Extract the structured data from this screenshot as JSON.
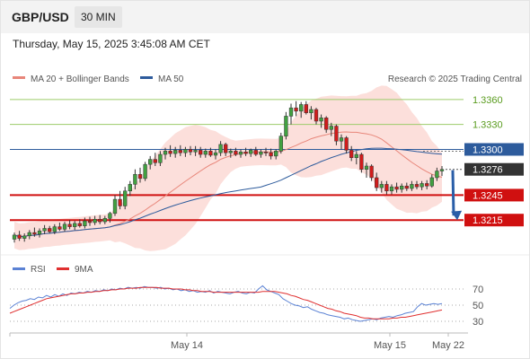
{
  "header": {
    "pair": "GBP/USD",
    "timeframe": "30 MIN"
  },
  "datetime": "Thursday, May 15, 2025 3:45:08 AM CET",
  "legend": {
    "bb": "MA 20 + Bollinger Bands",
    "ma50": "MA 50",
    "credit": "Research © 2025 Trading Central"
  },
  "rsi_legend": {
    "rsi": "RSI",
    "ma": "9MA"
  },
  "colors": {
    "up": "#41a141",
    "down": "#d11c1c",
    "res_line": "#9ccc6a",
    "res_text": "#5a9c1f",
    "support": "#d01010",
    "ma50": "#2d5b9c",
    "ma20": "#e8867a",
    "bb_fill": "#fcd9d5",
    "rsi": "#5b82d4",
    "rsi_ma": "#e03030",
    "arrow": "#2a5ea8",
    "current": "#333333"
  },
  "chart_data": {
    "type": "candlestick",
    "ylim": [
      1.3185,
      1.3375
    ],
    "x_ticks": [
      "May 14",
      "May 15",
      "May 22"
    ],
    "levels": [
      {
        "value": 1.336,
        "label": "1.3360",
        "kind": "resistance"
      },
      {
        "value": 1.333,
        "label": "1.3330",
        "kind": "resistance"
      },
      {
        "value": 1.33,
        "label": "1.3300",
        "kind": "pivot"
      },
      {
        "value": 1.3276,
        "label": "1.3276",
        "kind": "current"
      },
      {
        "value": 1.3245,
        "label": "1.3245",
        "kind": "support"
      },
      {
        "value": 1.3215,
        "label": "1.3215",
        "kind": "support"
      }
    ],
    "forecast": {
      "from": 1.3275,
      "to": 1.3215
    },
    "candles": [
      [
        1.3192,
        1.32,
        1.3188,
        1.3197
      ],
      [
        1.3197,
        1.3202,
        1.319,
        1.3193
      ],
      [
        1.3193,
        1.3199,
        1.3189,
        1.3196
      ],
      [
        1.3196,
        1.3203,
        1.3192,
        1.32
      ],
      [
        1.32,
        1.3206,
        1.3195,
        1.3198
      ],
      [
        1.3198,
        1.3205,
        1.3194,
        1.3202
      ],
      [
        1.3202,
        1.3209,
        1.3198,
        1.3205
      ],
      [
        1.3205,
        1.3208,
        1.3199,
        1.3201
      ],
      [
        1.3201,
        1.321,
        1.3198,
        1.3207
      ],
      [
        1.3207,
        1.3212,
        1.3202,
        1.3204
      ],
      [
        1.3204,
        1.3213,
        1.3201,
        1.321
      ],
      [
        1.321,
        1.3215,
        1.3204,
        1.3207
      ],
      [
        1.3207,
        1.3214,
        1.3203,
        1.3211
      ],
      [
        1.3211,
        1.3216,
        1.3206,
        1.3208
      ],
      [
        1.3208,
        1.3218,
        1.3205,
        1.3214
      ],
      [
        1.3214,
        1.3219,
        1.3208,
        1.3212
      ],
      [
        1.3212,
        1.322,
        1.3209,
        1.3216
      ],
      [
        1.3216,
        1.3221,
        1.321,
        1.3213
      ],
      [
        1.3213,
        1.322,
        1.321,
        1.3217
      ],
      [
        1.3217,
        1.3225,
        1.3212,
        1.3223
      ],
      [
        1.3223,
        1.3245,
        1.322,
        1.324
      ],
      [
        1.324,
        1.325,
        1.3228,
        1.3232
      ],
      [
        1.3232,
        1.3255,
        1.3228,
        1.325
      ],
      [
        1.325,
        1.3262,
        1.3244,
        1.3258
      ],
      [
        1.3258,
        1.3276,
        1.3252,
        1.327
      ],
      [
        1.327,
        1.3278,
        1.326,
        1.3265
      ],
      [
        1.3265,
        1.3285,
        1.3262,
        1.3282
      ],
      [
        1.3282,
        1.3292,
        1.3276,
        1.3288
      ],
      [
        1.3288,
        1.3296,
        1.328,
        1.3284
      ],
      [
        1.3284,
        1.3298,
        1.328,
        1.3294
      ],
      [
        1.3294,
        1.3302,
        1.3288,
        1.3298
      ],
      [
        1.3298,
        1.3305,
        1.3291,
        1.3295
      ],
      [
        1.3295,
        1.3303,
        1.329,
        1.3299
      ],
      [
        1.3299,
        1.3305,
        1.3292,
        1.3296
      ],
      [
        1.3296,
        1.3303,
        1.3291,
        1.33
      ],
      [
        1.33,
        1.3304,
        1.3293,
        1.3297
      ],
      [
        1.3297,
        1.3304,
        1.3292,
        1.3299
      ],
      [
        1.3299,
        1.3303,
        1.329,
        1.3294
      ],
      [
        1.3294,
        1.3301,
        1.329,
        1.3298
      ],
      [
        1.3298,
        1.3302,
        1.3291,
        1.3293
      ],
      [
        1.3293,
        1.33,
        1.3288,
        1.3296
      ],
      [
        1.3296,
        1.331,
        1.3292,
        1.3306
      ],
      [
        1.3306,
        1.3308,
        1.3292,
        1.3296
      ],
      [
        1.3296,
        1.3301,
        1.329,
        1.3298
      ],
      [
        1.3298,
        1.3302,
        1.3292,
        1.3294
      ],
      [
        1.3294,
        1.33,
        1.329,
        1.3297
      ],
      [
        1.3297,
        1.3302,
        1.3292,
        1.3295
      ],
      [
        1.3295,
        1.3301,
        1.3291,
        1.3299
      ],
      [
        1.3299,
        1.3303,
        1.3292,
        1.3294
      ],
      [
        1.3294,
        1.33,
        1.329,
        1.3297
      ],
      [
        1.3297,
        1.3302,
        1.3292,
        1.3296
      ],
      [
        1.3296,
        1.3301,
        1.3288,
        1.3292
      ],
      [
        1.3292,
        1.33,
        1.3288,
        1.3298
      ],
      [
        1.3298,
        1.332,
        1.3295,
        1.3316
      ],
      [
        1.3316,
        1.3345,
        1.3312,
        1.334
      ],
      [
        1.334,
        1.3355,
        1.333,
        1.335
      ],
      [
        1.335,
        1.3358,
        1.334,
        1.3346
      ],
      [
        1.3346,
        1.3357,
        1.3338,
        1.3354
      ],
      [
        1.3354,
        1.3358,
        1.3342,
        1.3344
      ],
      [
        1.3344,
        1.3352,
        1.3336,
        1.3348
      ],
      [
        1.3348,
        1.335,
        1.333,
        1.3334
      ],
      [
        1.3334,
        1.3342,
        1.3326,
        1.3338
      ],
      [
        1.3338,
        1.334,
        1.332,
        1.3324
      ],
      [
        1.3324,
        1.3332,
        1.3316,
        1.3328
      ],
      [
        1.3328,
        1.333,
        1.3305,
        1.331
      ],
      [
        1.331,
        1.3318,
        1.33,
        1.3314
      ],
      [
        1.3314,
        1.3316,
        1.3295,
        1.3299
      ],
      [
        1.3299,
        1.3304,
        1.3286,
        1.329
      ],
      [
        1.329,
        1.3298,
        1.3282,
        1.3294
      ],
      [
        1.3294,
        1.3296,
        1.3272,
        1.3276
      ],
      [
        1.3276,
        1.3284,
        1.3266,
        1.328
      ],
      [
        1.328,
        1.3282,
        1.3262,
        1.3266
      ],
      [
        1.3266,
        1.3272,
        1.325,
        1.3254
      ],
      [
        1.3254,
        1.3262,
        1.3248,
        1.3258
      ],
      [
        1.3258,
        1.3262,
        1.3246,
        1.325
      ],
      [
        1.325,
        1.3258,
        1.3246,
        1.3255
      ],
      [
        1.3255,
        1.326,
        1.3248,
        1.3252
      ],
      [
        1.3252,
        1.3259,
        1.3248,
        1.3256
      ],
      [
        1.3256,
        1.326,
        1.325,
        1.3253
      ],
      [
        1.3253,
        1.3262,
        1.325,
        1.3258
      ],
      [
        1.3258,
        1.3262,
        1.3252,
        1.3255
      ],
      [
        1.3255,
        1.3262,
        1.3251,
        1.3259
      ],
      [
        1.3259,
        1.3263,
        1.3252,
        1.3256
      ],
      [
        1.3256,
        1.327,
        1.3254,
        1.3266
      ],
      [
        1.3266,
        1.3278,
        1.3262,
        1.3274
      ],
      [
        1.3274,
        1.328,
        1.3268,
        1.3276
      ]
    ],
    "rsi": {
      "levels": [
        {
          "value": 70,
          "label": "70"
        },
        {
          "value": 50,
          "label": "50"
        },
        {
          "value": 30,
          "label": "30"
        }
      ],
      "ylim": [
        20,
        80
      ],
      "rsi_values": [
        46,
        50,
        53,
        55,
        56,
        58,
        57,
        60,
        59,
        62,
        60,
        63,
        61,
        64,
        62,
        65,
        64,
        66,
        65,
        67,
        66,
        68,
        67,
        69,
        68,
        70,
        69,
        71,
        70,
        72,
        71,
        72,
        71,
        73,
        72,
        72,
        71,
        72,
        70,
        71,
        69,
        70,
        68,
        69,
        67,
        68,
        66,
        67,
        66,
        68,
        65,
        67,
        66,
        65,
        64,
        66,
        67,
        65,
        64,
        66,
        65,
        70,
        74,
        69,
        67,
        65,
        63,
        58,
        55,
        52,
        50,
        49,
        47,
        48,
        45,
        43,
        41,
        40,
        38,
        37,
        36,
        35,
        33,
        34,
        32,
        31,
        30,
        31,
        32,
        33,
        32,
        34,
        35,
        36,
        35,
        37,
        38,
        40,
        41,
        42,
        48,
        52,
        50,
        51,
        52,
        51,
        52
      ],
      "ma_values": [
        40,
        42,
        44,
        46,
        48,
        50,
        52,
        54,
        56,
        58,
        59,
        60,
        61,
        62,
        63,
        64,
        64,
        65,
        65,
        66,
        66,
        67,
        67,
        68,
        68,
        69,
        69,
        70,
        70,
        71,
        71,
        71,
        72,
        72,
        72,
        72,
        72,
        71,
        71,
        71,
        70,
        70,
        70,
        69,
        69,
        68,
        68,
        67,
        67,
        67,
        66,
        66,
        66,
        66,
        66,
        66,
        66,
        66,
        66,
        66,
        66,
        66,
        67,
        67,
        67,
        67,
        66,
        65,
        64,
        62,
        61,
        59,
        57,
        56,
        54,
        52,
        50,
        48,
        46,
        45,
        43,
        42,
        40,
        39,
        38,
        37,
        35,
        34,
        34,
        33,
        33,
        33,
        33,
        33,
        34,
        34,
        35,
        35,
        36,
        37,
        38,
        39,
        40,
        41,
        42,
        43,
        44
      ]
    }
  }
}
